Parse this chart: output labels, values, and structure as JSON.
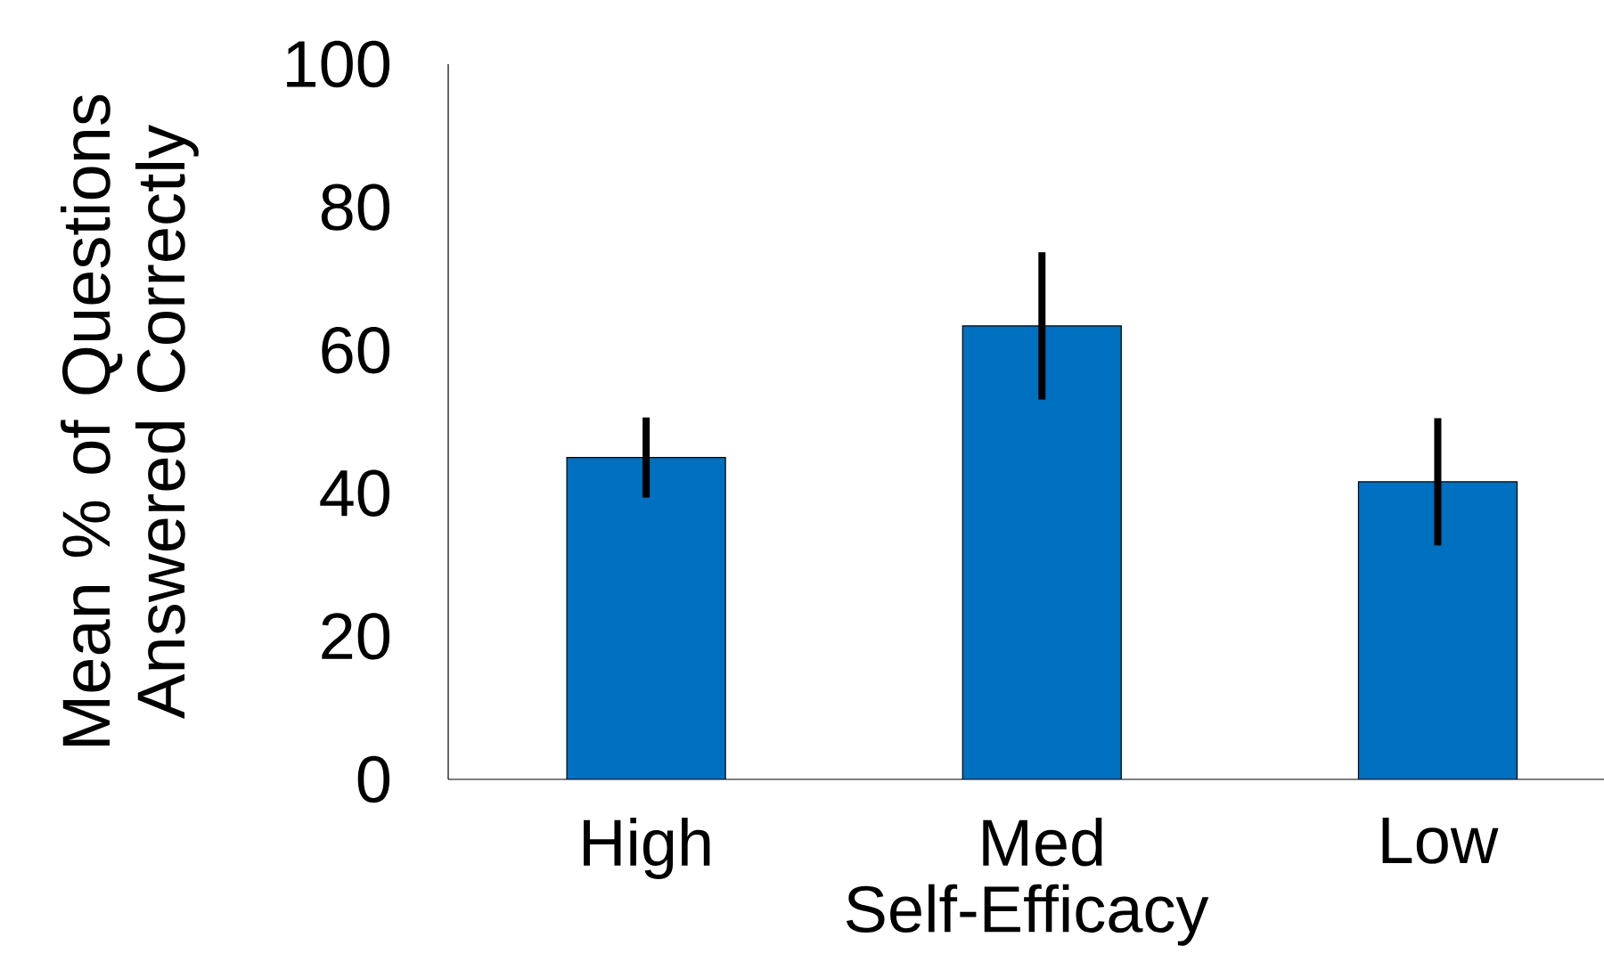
{
  "chart_data": {
    "type": "bar",
    "xlabel": "Self-Efficacy",
    "ylabel": "Mean % of Questions Answered Correctly",
    "categories": [
      "High",
      "Med",
      "Low"
    ],
    "values": [
      45,
      63.4,
      41.6
    ],
    "errors": [
      5.6,
      10.3,
      8.9
    ],
    "color": "#0070c0",
    "ylim": [
      0,
      100
    ],
    "yticks": [
      0,
      20,
      40,
      60,
      80,
      100
    ],
    "grid": false
  }
}
